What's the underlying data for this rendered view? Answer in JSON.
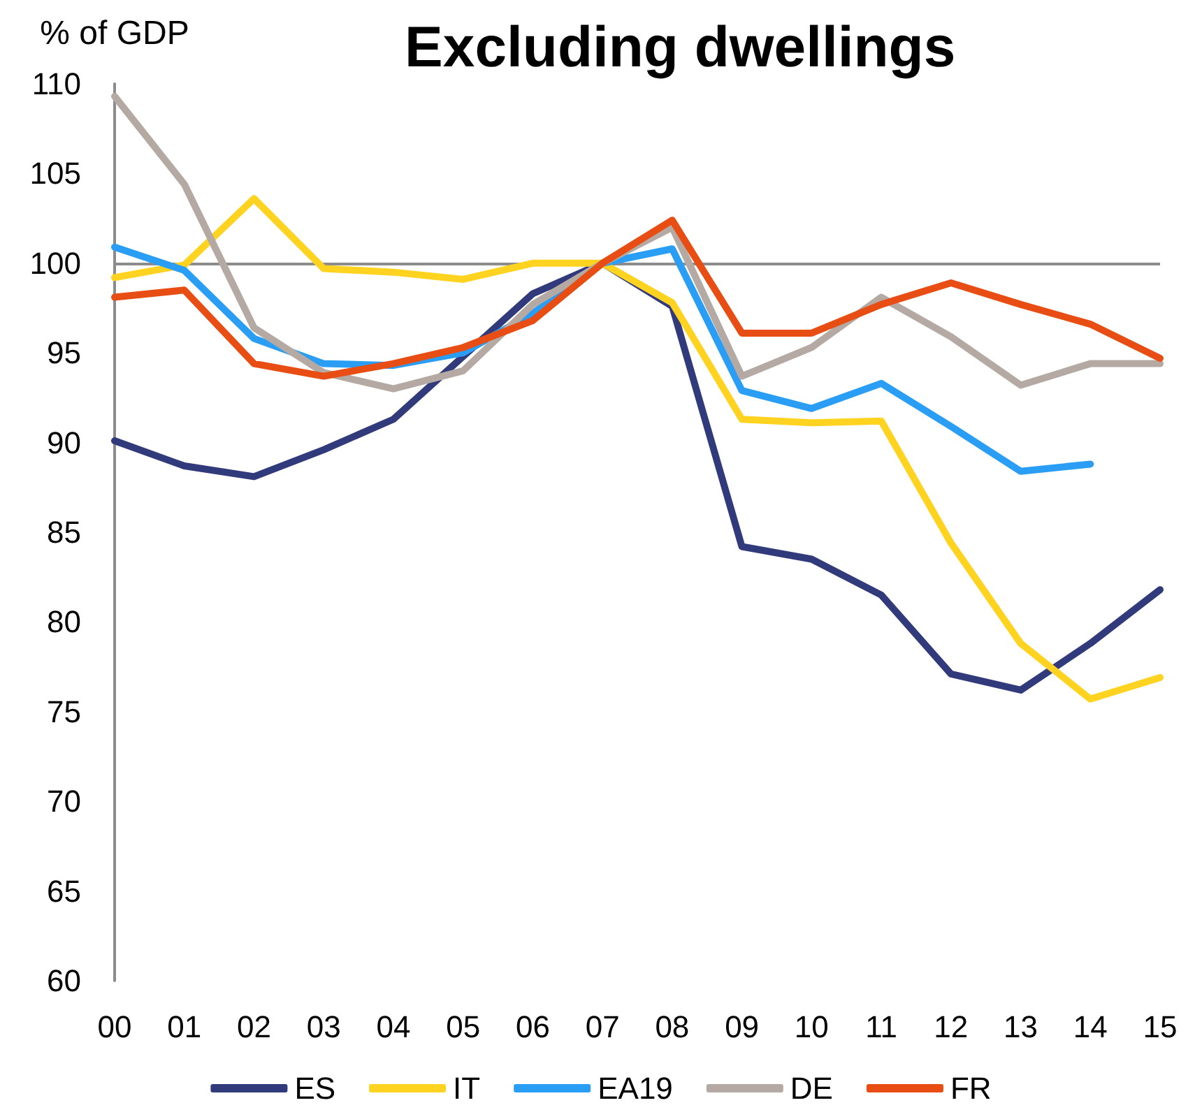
{
  "chart_data": {
    "type": "line",
    "title": "Excluding dwellings",
    "ylabel": "% of GDP",
    "categories": [
      "00",
      "01",
      "02",
      "03",
      "04",
      "05",
      "06",
      "07",
      "08",
      "09",
      "10",
      "11",
      "12",
      "13",
      "14",
      "15"
    ],
    "series": [
      {
        "name": "ES",
        "color": "#313a7a",
        "values": [
          90.1,
          88.7,
          88.1,
          89.6,
          91.3,
          94.8,
          98.3,
          100,
          97.6,
          84.2,
          83.5,
          81.5,
          77.1,
          76.2,
          78.8,
          81.8
        ]
      },
      {
        "name": "IT",
        "color": "#ffd320",
        "values": [
          99.2,
          99.9,
          103.6,
          99.7,
          99.5,
          99.1,
          100,
          100,
          97.8,
          91.3,
          91.1,
          91.2,
          84.4,
          78.8,
          75.7,
          76.9
        ]
      },
      {
        "name": "EA19",
        "color": "#2a9df4",
        "values": [
          100.9,
          99.6,
          95.8,
          94.4,
          94.3,
          95.0,
          97.2,
          100,
          100.8,
          92.9,
          91.9,
          93.3,
          90.9,
          88.4,
          88.8,
          null
        ]
      },
      {
        "name": "DE",
        "color": "#b5aaa3",
        "values": [
          109.3,
          104.4,
          96.4,
          93.9,
          93.0,
          94.0,
          97.7,
          100,
          102.0,
          93.7,
          95.3,
          98.1,
          95.9,
          93.2,
          94.4,
          94.4
        ]
      },
      {
        "name": "FR",
        "color": "#e84e13",
        "values": [
          98.1,
          98.5,
          94.4,
          93.7,
          94.4,
          95.3,
          96.8,
          100,
          102.4,
          96.1,
          96.1,
          97.7,
          98.9,
          97.7,
          96.6,
          94.7
        ]
      }
    ],
    "ylim": [
      60,
      110
    ],
    "yticks": [
      60,
      65,
      70,
      75,
      80,
      85,
      90,
      95,
      100,
      105,
      110
    ],
    "ref_lines": [
      {
        "axis": "y",
        "value": 100,
        "color": "#8c8c8c"
      }
    ],
    "grid": false,
    "legend": "bottom",
    "marker": "none",
    "line_style": "solid"
  }
}
